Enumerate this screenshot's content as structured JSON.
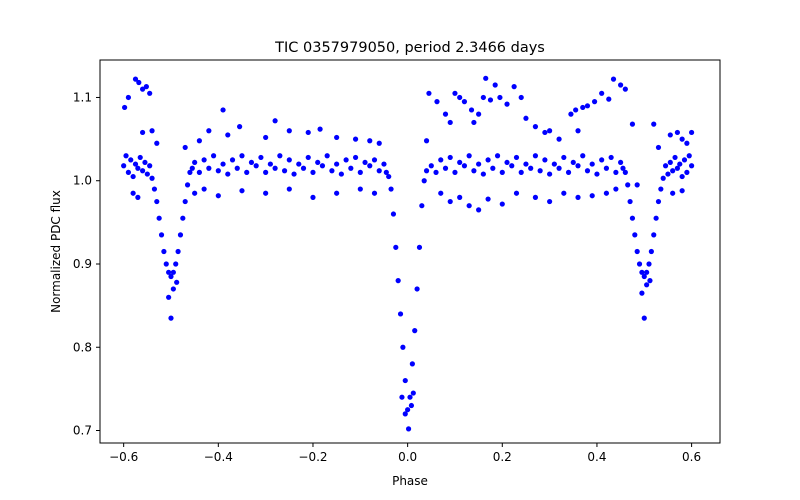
{
  "chart_data": {
    "type": "scatter",
    "title": "TIC 0357979050, period 2.3466 days",
    "xlabel": "Phase",
    "ylabel": "Normalized PDC flux",
    "xlim": [
      -0.65,
      0.66
    ],
    "ylim": [
      0.685,
      1.145
    ],
    "x_ticks": [
      -0.6,
      -0.4,
      -0.2,
      0.0,
      0.2,
      0.4,
      0.6
    ],
    "x_tick_labels": [
      "−0.6",
      "−0.4",
      "−0.2",
      "0.0",
      "0.2",
      "0.4",
      "0.6"
    ],
    "y_ticks": [
      0.7,
      0.8,
      0.9,
      1.0,
      1.1
    ],
    "y_tick_labels": [
      "0.7",
      "0.8",
      "0.9",
      "1.0",
      "1.1"
    ],
    "grid": false,
    "marker_color": "#0000ff",
    "period_days": 2.3466,
    "series": [
      {
        "points": [
          [
            -0.6,
            1.018
          ],
          [
            -0.595,
            1.03
          ],
          [
            -0.59,
            1.01
          ],
          [
            -0.585,
            1.025
          ],
          [
            -0.58,
            1.005
          ],
          [
            -0.575,
            1.02
          ],
          [
            -0.57,
            1.015
          ],
          [
            -0.565,
            1.028
          ],
          [
            -0.56,
            1.012
          ],
          [
            -0.555,
            1.022
          ],
          [
            -0.55,
            1.008
          ],
          [
            -0.545,
            1.018
          ],
          [
            -0.54,
            1.003
          ],
          [
            -0.535,
            0.99
          ],
          [
            -0.53,
            0.975
          ],
          [
            -0.525,
            0.955
          ],
          [
            -0.52,
            0.935
          ],
          [
            -0.515,
            0.915
          ],
          [
            -0.51,
            0.9
          ],
          [
            -0.505,
            0.89
          ],
          [
            -0.5,
            0.885
          ],
          [
            -0.495,
            0.89
          ],
          [
            -0.49,
            0.9
          ],
          [
            -0.485,
            0.915
          ],
          [
            -0.48,
            0.935
          ],
          [
            -0.475,
            0.955
          ],
          [
            -0.47,
            0.975
          ],
          [
            -0.465,
            0.995
          ],
          [
            -0.46,
            1.01
          ],
          [
            -0.455,
            1.015
          ],
          [
            -0.45,
            1.022
          ],
          [
            -0.44,
            1.01
          ],
          [
            -0.43,
            1.025
          ],
          [
            -0.42,
            1.015
          ],
          [
            -0.41,
            1.03
          ],
          [
            -0.4,
            1.012
          ],
          [
            -0.39,
            1.02
          ],
          [
            -0.38,
            1.008
          ],
          [
            -0.37,
            1.025
          ],
          [
            -0.36,
            1.015
          ],
          [
            -0.35,
            1.03
          ],
          [
            -0.34,
            1.01
          ],
          [
            -0.33,
            1.022
          ],
          [
            -0.32,
            1.018
          ],
          [
            -0.31,
            1.028
          ],
          [
            -0.3,
            1.01
          ],
          [
            -0.29,
            1.02
          ],
          [
            -0.28,
            1.015
          ],
          [
            -0.27,
            1.03
          ],
          [
            -0.26,
            1.012
          ],
          [
            -0.25,
            1.025
          ],
          [
            -0.24,
            1.008
          ],
          [
            -0.23,
            1.02
          ],
          [
            -0.22,
            1.015
          ],
          [
            -0.21,
            1.028
          ],
          [
            -0.2,
            1.01
          ],
          [
            -0.19,
            1.022
          ],
          [
            -0.18,
            1.018
          ],
          [
            -0.17,
            1.03
          ],
          [
            -0.16,
            1.012
          ],
          [
            -0.15,
            1.02
          ],
          [
            -0.14,
            1.008
          ],
          [
            -0.13,
            1.025
          ],
          [
            -0.12,
            1.015
          ],
          [
            -0.11,
            1.028
          ],
          [
            -0.1,
            1.01
          ],
          [
            -0.09,
            1.022
          ],
          [
            -0.08,
            1.018
          ],
          [
            -0.07,
            1.025
          ],
          [
            -0.06,
            1.012
          ],
          [
            -0.05,
            1.02
          ],
          [
            -0.045,
            1.01
          ],
          [
            -0.04,
            1.005
          ],
          [
            -0.035,
            0.99
          ],
          [
            -0.03,
            0.96
          ],
          [
            -0.025,
            0.92
          ],
          [
            -0.02,
            0.88
          ],
          [
            -0.015,
            0.84
          ],
          [
            -0.01,
            0.8
          ],
          [
            -0.005,
            0.76
          ],
          [
            0.0,
            0.725
          ],
          [
            0.005,
            0.74
          ],
          [
            0.01,
            0.78
          ],
          [
            0.015,
            0.82
          ],
          [
            0.02,
            0.87
          ],
          [
            0.025,
            0.92
          ],
          [
            0.03,
            0.97
          ],
          [
            0.035,
            1.0
          ],
          [
            0.04,
            1.012
          ],
          [
            0.05,
            1.018
          ],
          [
            0.06,
            1.01
          ],
          [
            0.07,
            1.025
          ],
          [
            0.08,
            1.015
          ],
          [
            0.09,
            1.028
          ],
          [
            0.1,
            1.01
          ],
          [
            0.11,
            1.022
          ],
          [
            0.12,
            1.018
          ],
          [
            0.13,
            1.03
          ],
          [
            0.14,
            1.012
          ],
          [
            0.15,
            1.02
          ],
          [
            0.16,
            1.008
          ],
          [
            0.17,
            1.025
          ],
          [
            0.18,
            1.015
          ],
          [
            0.19,
            1.03
          ],
          [
            0.2,
            1.01
          ],
          [
            0.21,
            1.022
          ],
          [
            0.22,
            1.018
          ],
          [
            0.23,
            1.028
          ],
          [
            0.24,
            1.01
          ],
          [
            0.25,
            1.02
          ],
          [
            0.26,
            1.015
          ],
          [
            0.27,
            1.03
          ],
          [
            0.28,
            1.012
          ],
          [
            0.29,
            1.025
          ],
          [
            0.3,
            1.008
          ],
          [
            0.31,
            1.02
          ],
          [
            0.32,
            1.015
          ],
          [
            0.33,
            1.028
          ],
          [
            0.34,
            1.01
          ],
          [
            0.35,
            1.022
          ],
          [
            0.36,
            1.018
          ],
          [
            0.37,
            1.03
          ],
          [
            0.38,
            1.012
          ],
          [
            0.39,
            1.02
          ],
          [
            0.4,
            1.008
          ],
          [
            0.41,
            1.025
          ],
          [
            0.42,
            1.015
          ],
          [
            0.43,
            1.028
          ],
          [
            0.44,
            1.01
          ],
          [
            0.45,
            1.022
          ],
          [
            0.455,
            1.015
          ],
          [
            0.46,
            1.01
          ],
          [
            0.465,
            0.995
          ],
          [
            0.47,
            0.975
          ],
          [
            0.475,
            0.955
          ],
          [
            0.48,
            0.935
          ],
          [
            0.485,
            0.915
          ],
          [
            0.49,
            0.9
          ],
          [
            0.495,
            0.89
          ],
          [
            0.5,
            0.885
          ],
          [
            0.505,
            0.89
          ],
          [
            0.51,
            0.9
          ],
          [
            0.515,
            0.915
          ],
          [
            0.52,
            0.935
          ],
          [
            0.525,
            0.955
          ],
          [
            0.53,
            0.975
          ],
          [
            0.535,
            0.99
          ],
          [
            0.54,
            1.003
          ],
          [
            0.545,
            1.018
          ],
          [
            0.55,
            1.008
          ],
          [
            0.555,
            1.022
          ],
          [
            0.56,
            1.012
          ],
          [
            0.565,
            1.028
          ],
          [
            0.57,
            1.015
          ],
          [
            0.575,
            1.02
          ],
          [
            0.58,
            1.005
          ],
          [
            0.585,
            1.025
          ],
          [
            0.59,
            1.01
          ],
          [
            0.595,
            1.03
          ],
          [
            0.6,
            1.018
          ],
          [
            -0.598,
            1.088
          ],
          [
            -0.59,
            1.1
          ],
          [
            -0.575,
            1.122
          ],
          [
            -0.568,
            1.118
          ],
          [
            -0.56,
            1.11
          ],
          [
            -0.552,
            1.113
          ],
          [
            -0.545,
            1.105
          ],
          [
            -0.54,
            1.06
          ],
          [
            -0.56,
            1.058
          ],
          [
            -0.58,
            0.985
          ],
          [
            -0.57,
            0.98
          ],
          [
            -0.53,
            1.045
          ],
          [
            -0.505,
            0.86
          ],
          [
            -0.5,
            0.835
          ],
          [
            -0.495,
            0.87
          ],
          [
            -0.488,
            0.878
          ],
          [
            -0.47,
            1.04
          ],
          [
            -0.44,
            1.048
          ],
          [
            -0.42,
            1.06
          ],
          [
            -0.39,
            1.085
          ],
          [
            -0.38,
            1.055
          ],
          [
            -0.355,
            1.065
          ],
          [
            -0.3,
            1.052
          ],
          [
            -0.28,
            1.072
          ],
          [
            -0.25,
            1.06
          ],
          [
            -0.21,
            1.058
          ],
          [
            -0.185,
            1.062
          ],
          [
            -0.15,
            1.052
          ],
          [
            -0.11,
            1.05
          ],
          [
            -0.08,
            1.048
          ],
          [
            -0.06,
            1.045
          ],
          [
            -0.45,
            0.985
          ],
          [
            -0.43,
            0.99
          ],
          [
            -0.4,
            0.982
          ],
          [
            -0.35,
            0.988
          ],
          [
            -0.3,
            0.985
          ],
          [
            -0.25,
            0.99
          ],
          [
            -0.2,
            0.98
          ],
          [
            -0.15,
            0.985
          ],
          [
            -0.1,
            0.99
          ],
          [
            -0.07,
            0.985
          ],
          [
            -0.005,
            0.72
          ],
          [
            0.002,
            0.702
          ],
          [
            0.008,
            0.73
          ],
          [
            -0.012,
            0.74
          ],
          [
            0.012,
            0.745
          ],
          [
            0.04,
            1.048
          ],
          [
            0.045,
            1.105
          ],
          [
            0.062,
            1.095
          ],
          [
            0.08,
            1.08
          ],
          [
            0.09,
            1.07
          ],
          [
            0.1,
            1.105
          ],
          [
            0.11,
            1.1
          ],
          [
            0.12,
            1.095
          ],
          [
            0.135,
            1.085
          ],
          [
            0.14,
            1.07
          ],
          [
            0.15,
            1.08
          ],
          [
            0.16,
            1.1
          ],
          [
            0.165,
            1.123
          ],
          [
            0.175,
            1.097
          ],
          [
            0.185,
            1.115
          ],
          [
            0.195,
            1.1
          ],
          [
            0.21,
            1.092
          ],
          [
            0.225,
            1.113
          ],
          [
            0.24,
            1.1
          ],
          [
            0.25,
            1.075
          ],
          [
            0.27,
            1.065
          ],
          [
            0.29,
            1.058
          ],
          [
            0.3,
            1.06
          ],
          [
            0.32,
            1.05
          ],
          [
            0.345,
            1.08
          ],
          [
            0.355,
            1.085
          ],
          [
            0.36,
            1.06
          ],
          [
            0.37,
            1.088
          ],
          [
            0.38,
            1.09
          ],
          [
            0.395,
            1.095
          ],
          [
            0.41,
            1.105
          ],
          [
            0.425,
            1.098
          ],
          [
            0.435,
            1.122
          ],
          [
            0.45,
            1.115
          ],
          [
            0.46,
            1.11
          ],
          [
            0.475,
            1.068
          ],
          [
            0.07,
            0.985
          ],
          [
            0.09,
            0.975
          ],
          [
            0.11,
            0.98
          ],
          [
            0.13,
            0.97
          ],
          [
            0.15,
            0.965
          ],
          [
            0.17,
            0.978
          ],
          [
            0.2,
            0.972
          ],
          [
            0.23,
            0.985
          ],
          [
            0.27,
            0.98
          ],
          [
            0.3,
            0.975
          ],
          [
            0.33,
            0.985
          ],
          [
            0.36,
            0.98
          ],
          [
            0.39,
            0.982
          ],
          [
            0.42,
            0.985
          ],
          [
            0.44,
            0.99
          ],
          [
            0.495,
            0.865
          ],
          [
            0.5,
            0.835
          ],
          [
            0.505,
            0.875
          ],
          [
            0.512,
            0.88
          ],
          [
            0.53,
            1.04
          ],
          [
            0.555,
            1.055
          ],
          [
            0.57,
            1.058
          ],
          [
            0.58,
            1.05
          ],
          [
            0.59,
            1.045
          ],
          [
            0.6,
            1.058
          ],
          [
            0.56,
            0.985
          ],
          [
            0.58,
            0.988
          ],
          [
            0.52,
            1.068
          ],
          [
            0.485,
            0.995
          ]
        ]
      }
    ]
  }
}
